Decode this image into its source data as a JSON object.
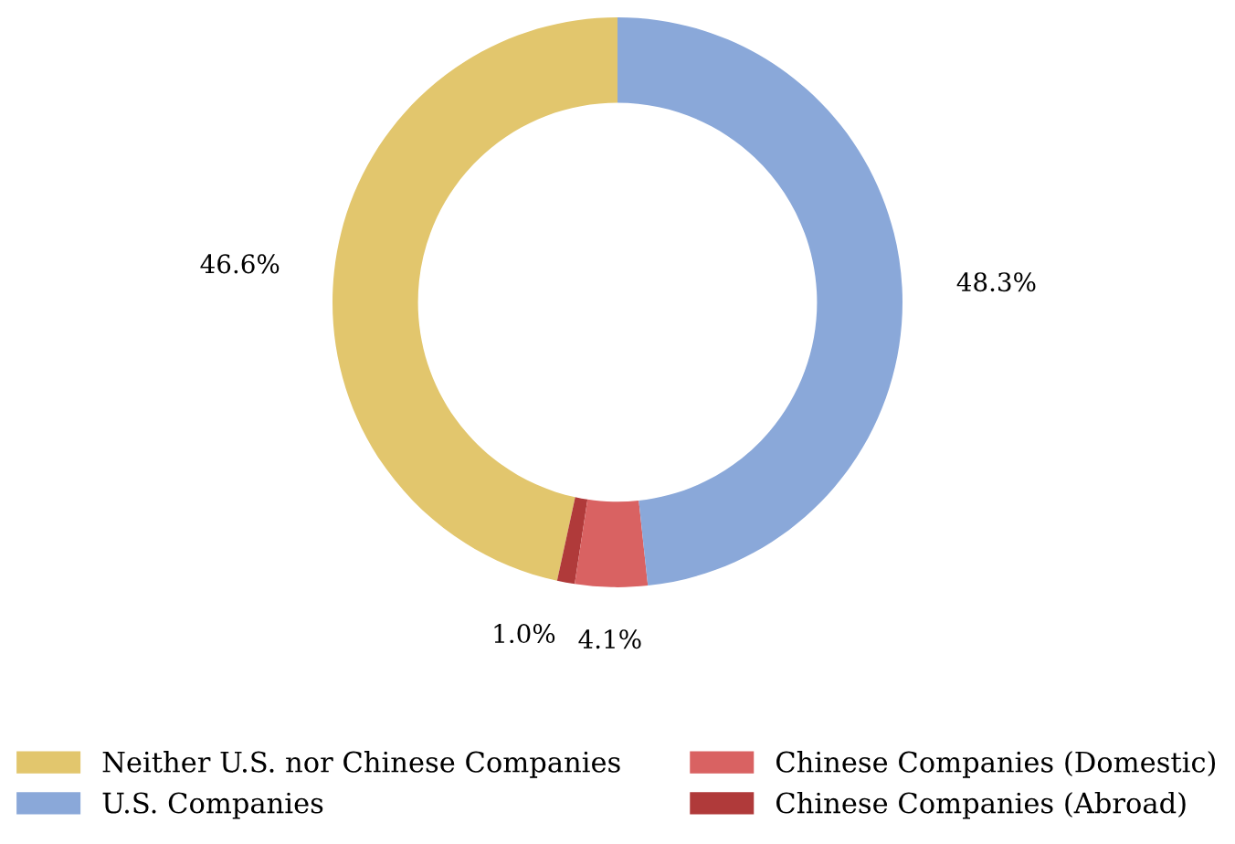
{
  "chart_data": {
    "type": "donut",
    "categories": [
      "Neither U.S. nor Chinese Companies",
      "Chinese Companies (Abroad)",
      "Chinese Companies (Domestic)",
      "U.S. Companies"
    ],
    "values": [
      46.6,
      1.0,
      4.1,
      48.3
    ],
    "colors": [
      "#e2c66d",
      "#b03a3a",
      "#d96262",
      "#8aa8d9"
    ],
    "value_labels": [
      "46.6%",
      "1.0%",
      "4.1%",
      "48.3%"
    ],
    "legend": "bottom"
  }
}
